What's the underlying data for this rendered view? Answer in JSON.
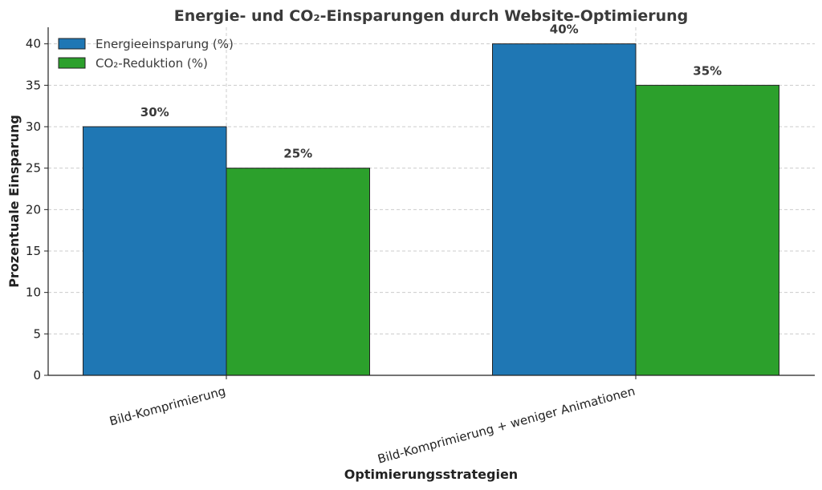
{
  "chart_data": {
    "type": "bar",
    "title": "Energie- und CO₂-Einsparungen durch Website-Optimierung",
    "xlabel": "Optimierungsstrategien",
    "ylabel": "Prozentuale Einsparung",
    "categories": [
      "Bild-Komprimierung",
      "Bild-Komprimierung + weniger Animationen"
    ],
    "series": [
      {
        "name": "Energieeinsparung (%)",
        "values": [
          30,
          40
        ],
        "labels": [
          "30%",
          "40%"
        ],
        "color": "#1f77b4"
      },
      {
        "name": "CO₂-Reduktion (%)",
        "values": [
          25,
          35
        ],
        "labels": [
          "25%",
          "35%"
        ],
        "color": "#2ca02c"
      }
    ],
    "ylim": [
      0,
      42
    ],
    "yticks": [
      0,
      5,
      10,
      15,
      20,
      25,
      30,
      35,
      40
    ],
    "grid": true,
    "legend_position": "top-left"
  }
}
